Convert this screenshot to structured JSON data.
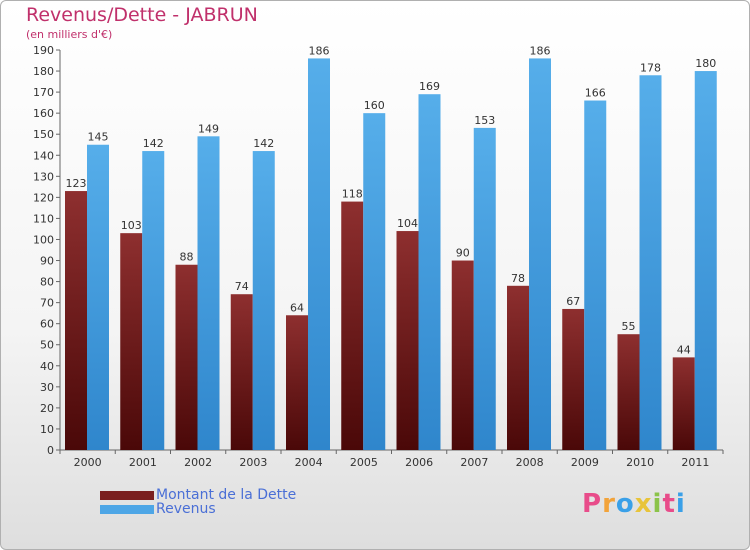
{
  "title": "Revenus/Dette - JABRUN",
  "subtitle": "(en milliers d'€)",
  "colors": {
    "debt_bar": "#7a1f1f",
    "revenue_bar": "#4ea6e6",
    "title": "#c0306b",
    "legend_text": "#4a6fd6"
  },
  "legend": [
    {
      "label": "Montant de la Dette",
      "color": "#7a1f1f"
    },
    {
      "label": "Revenus",
      "color": "#4ea6e6"
    }
  ],
  "logo": {
    "text": "Proxiti",
    "letter_colors": [
      "#e84c8a",
      "#f2a33a",
      "#3aa0e8",
      "#e8c43a",
      "#8bc34a",
      "#e84c8a",
      "#3aa0e8"
    ]
  },
  "chart_data": {
    "type": "bar",
    "categories": [
      "2000",
      "2001",
      "2002",
      "2003",
      "2004",
      "2005",
      "2006",
      "2007",
      "2008",
      "2009",
      "2010",
      "2011"
    ],
    "series": [
      {
        "name": "Montant de la Dette",
        "values": [
          123,
          103,
          88,
          74,
          64,
          118,
          104,
          90,
          78,
          67,
          55,
          44
        ]
      },
      {
        "name": "Revenus",
        "values": [
          145,
          142,
          149,
          142,
          186,
          160,
          169,
          153,
          186,
          166,
          178,
          180
        ]
      }
    ],
    "title": "Revenus/Dette - JABRUN",
    "subtitle": "(en milliers d'€)",
    "ylim": [
      0,
      190
    ],
    "yticks": [
      0,
      10,
      20,
      30,
      40,
      50,
      60,
      70,
      80,
      90,
      100,
      110,
      120,
      130,
      140,
      150,
      160,
      170,
      180,
      190
    ],
    "grid": false,
    "legend_position": "bottom-left"
  }
}
